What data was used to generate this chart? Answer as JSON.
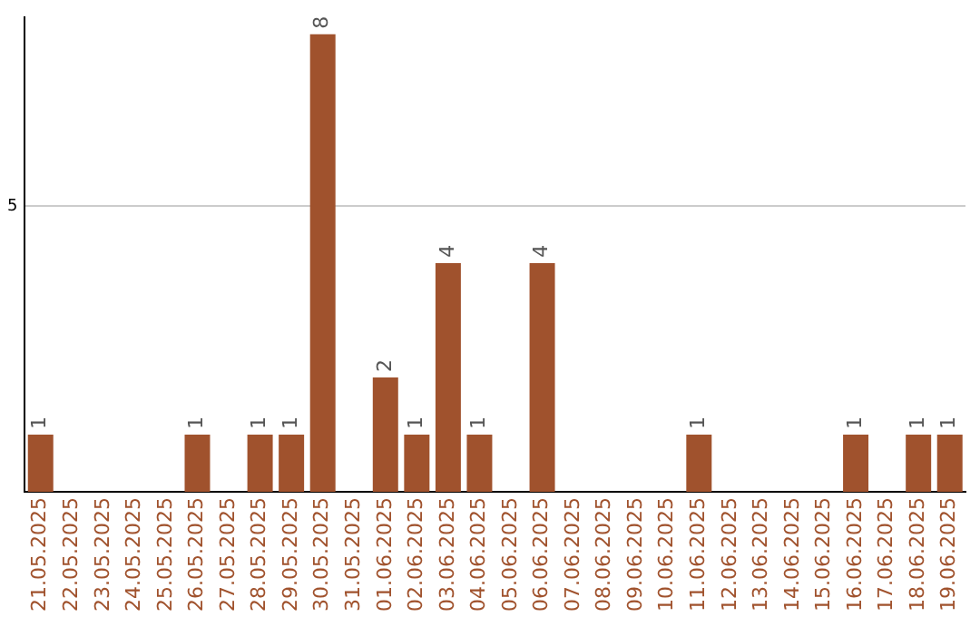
{
  "chart_data": {
    "type": "bar",
    "categories": [
      "21.05.2025",
      "22.05.2025",
      "23.05.2025",
      "24.05.2025",
      "25.05.2025",
      "26.05.2025",
      "27.05.2025",
      "28.05.2025",
      "29.05.2025",
      "30.05.2025",
      "31.05.2025",
      "01.06.2025",
      "02.06.2025",
      "03.06.2025",
      "04.06.2025",
      "05.06.2025",
      "06.06.2025",
      "07.06.2025",
      "08.06.2025",
      "09.06.2025",
      "10.06.2025",
      "11.06.2025",
      "12.06.2025",
      "13.06.2025",
      "14.06.2025",
      "15.06.2025",
      "16.06.2025",
      "17.06.2025",
      "18.06.2025",
      "19.06.2025"
    ],
    "values": [
      1,
      0,
      0,
      0,
      0,
      1,
      0,
      1,
      1,
      8,
      0,
      2,
      1,
      4,
      1,
      0,
      4,
      0,
      0,
      0,
      0,
      1,
      0,
      0,
      0,
      0,
      1,
      0,
      1,
      1
    ],
    "value_labels": [
      "1",
      null,
      null,
      null,
      null,
      "1",
      null,
      "1",
      "1",
      "8",
      null,
      "2",
      "1",
      "4",
      "1",
      null,
      "4",
      null,
      null,
      null,
      null,
      "1",
      null,
      null,
      null,
      null,
      "1",
      null,
      "1",
      "1"
    ],
    "color": "#a0522d",
    "ylim": [
      0,
      8.3
    ],
    "yticks": [
      5
    ],
    "grid": "y",
    "legend": false
  }
}
